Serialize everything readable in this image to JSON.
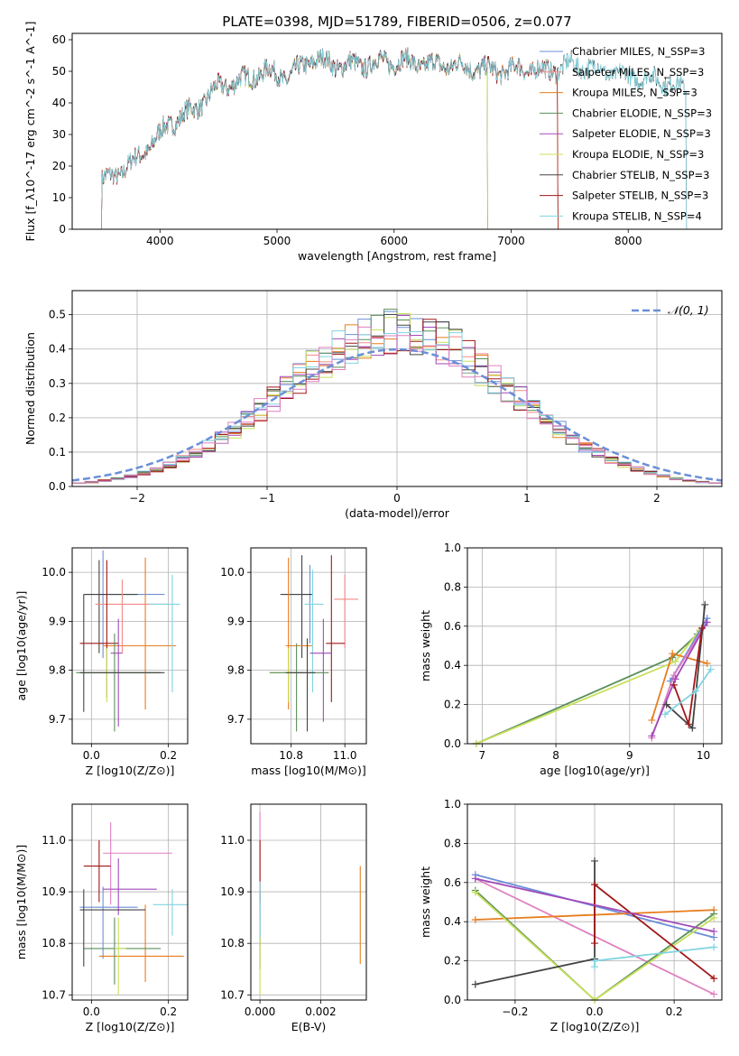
{
  "figure_title": "PLATE=0398, MJD=51789, FIBERID=0506, z=0.077",
  "colors": [
    "#6a8fd8",
    "#f08a86",
    "#e87d1e",
    "#5b8f5b",
    "#a14aba",
    "#c8e05a",
    "#444444",
    "#a01818",
    "#80d4e0",
    "#e07fc0"
  ],
  "chart_data": [
    {
      "id": "spectrum",
      "type": "line",
      "title": "PLATE=0398, MJD=51789, FIBERID=0506, z=0.077",
      "xlabel": "wavelength [Angstrom, rest frame]",
      "ylabel": "Flux [f_λ10^-17 erg cm^-2 s^-1 A^-1]",
      "xlim": [
        3250,
        8800
      ],
      "ylim": [
        0,
        62
      ],
      "xticks": [
        4000,
        5000,
        6000,
        7000,
        8000
      ],
      "yticks": [
        0,
        10,
        20,
        30,
        40,
        50,
        60
      ],
      "grid": false,
      "legend": "top-right",
      "continuum": [
        [
          3500,
          15
        ],
        [
          3650,
          18
        ],
        [
          3800,
          22
        ],
        [
          3950,
          28
        ],
        [
          4100,
          34
        ],
        [
          4300,
          38
        ],
        [
          4500,
          45
        ],
        [
          4700,
          47
        ],
        [
          4900,
          50
        ],
        [
          5100,
          48
        ],
        [
          5300,
          54
        ],
        [
          5500,
          52
        ],
        [
          5700,
          52
        ],
        [
          5900,
          53
        ],
        [
          6100,
          53
        ],
        [
          6300,
          52
        ],
        [
          6500,
          52
        ],
        [
          6700,
          51
        ],
        [
          6900,
          50
        ],
        [
          7100,
          51
        ],
        [
          7300,
          50
        ],
        [
          7500,
          52
        ],
        [
          7700,
          51
        ],
        [
          7900,
          49
        ],
        [
          8100,
          48
        ],
        [
          8300,
          47
        ],
        [
          8500,
          44
        ]
      ],
      "series": [
        {
          "name": "Chabrier MILES, N_SSP=3",
          "x_range": [
            3500,
            7400
          ]
        },
        {
          "name": "Salpeter MILES, N_SSP=3",
          "x_range": [
            3500,
            7400
          ]
        },
        {
          "name": "Kroupa MILES, N_SSP=3",
          "x_range": [
            3500,
            7400
          ]
        },
        {
          "name": "Chabrier ELODIE, N_SSP=3",
          "x_range": [
            3900,
            6800
          ]
        },
        {
          "name": "Salpeter ELODIE, N_SSP=3",
          "x_range": [
            3900,
            6800
          ]
        },
        {
          "name": "Kroupa ELODIE, N_SSP=3",
          "x_range": [
            3900,
            6800
          ]
        },
        {
          "name": "Chabrier STELIB, N_SSP=3",
          "x_range": [
            3500,
            8500
          ]
        },
        {
          "name": "Salpeter STELIB, N_SSP=3",
          "x_range": [
            3500,
            7400
          ]
        },
        {
          "name": "Kroupa STELIB, N_SSP=4",
          "x_range": [
            3500,
            8500
          ]
        }
      ]
    },
    {
      "id": "residuals",
      "type": "histogram",
      "xlabel": "(data-model)/error",
      "ylabel": "Normed distribution",
      "xlim": [
        -2.5,
        2.5
      ],
      "ylim": [
        0,
        0.57
      ],
      "xticks": [
        -2,
        -1,
        0,
        1,
        2
      ],
      "yticks": [
        0.0,
        0.1,
        0.2,
        0.3,
        0.4,
        0.5
      ],
      "grid": true,
      "legend": "top-right",
      "reference_curve": {
        "name": "𝒩(0, 1)",
        "mean": 0,
        "sigma": 1
      },
      "bin_width": 0.1,
      "bin_start": -2.5,
      "num_histograms": 10
    },
    {
      "id": "age-vs-z",
      "type": "errorbar",
      "xlabel": "Z [log10(Z/Z⊙)]",
      "ylabel": "age [log10(age/yr)]",
      "xlim": [
        -0.05,
        0.25
      ],
      "ylim": [
        9.65,
        10.05
      ],
      "xticks": [
        0.0,
        0.2
      ],
      "yticks": [
        9.7,
        9.8,
        9.9,
        10.0
      ],
      "grid": true,
      "points": [
        {
          "x": 0.03,
          "y": 9.955,
          "xerr": [
            0.05,
            0.16
          ],
          "yerr": [
            0.13,
            0.09
          ],
          "c": 0
        },
        {
          "x": 0.02,
          "y": 9.955,
          "xerr": [
            0.04,
            0.1
          ],
          "yerr": [
            0.12,
            0.07
          ],
          "c": 6
        },
        {
          "x": 0.14,
          "y": 9.85,
          "xerr": [
            0.11,
            0.08
          ],
          "yerr": [
            0.13,
            0.18
          ],
          "c": 2
        },
        {
          "x": 0.08,
          "y": 9.935,
          "xerr": [
            0.07,
            0.12
          ],
          "yerr": [
            0.1,
            0.05
          ],
          "c": 1
        },
        {
          "x": 0.21,
          "y": 9.935,
          "xerr": [
            0.06,
            0.02
          ],
          "yerr": [
            0.18,
            0.06
          ],
          "c": 8
        },
        {
          "x": 0.04,
          "y": 9.855,
          "xerr": [
            0.07,
            0.03
          ],
          "yerr": [
            0.11,
            0.17
          ],
          "c": 7
        },
        {
          "x": 0.07,
          "y": 9.835,
          "xerr": [
            0.02,
            0.01
          ],
          "yerr": [
            0.15,
            0.07
          ],
          "c": 4
        },
        {
          "x": 0.04,
          "y": 9.795,
          "xerr": [
            0.06,
            0.14
          ],
          "yerr": [
            0.06,
            0.05
          ],
          "c": 5
        },
        {
          "x": 0.06,
          "y": 9.795,
          "xerr": [
            0.1,
            0.12
          ],
          "yerr": [
            0.12,
            0.08
          ],
          "c": 3
        },
        {
          "x": -0.02,
          "y": 9.795,
          "xerr": [
            0.01,
            0.21
          ],
          "yerr": [
            0.08,
            0.16
          ],
          "c": 6
        }
      ]
    },
    {
      "id": "age-vs-mass",
      "type": "errorbar",
      "xlabel": "mass [log10(M/M⊙)]",
      "ylabel": "",
      "xlim": [
        10.65,
        11.08
      ],
      "ylim": [
        9.65,
        10.05
      ],
      "xticks": [
        10.8,
        11.0
      ],
      "yticks": [
        9.7,
        9.8,
        9.9,
        10.0
      ],
      "grid": true,
      "points": [
        {
          "x": 10.87,
          "y": 9.955,
          "xerr": [
            0.1,
            0.01
          ],
          "yerr": [
            0.1,
            0.06
          ],
          "c": 0
        },
        {
          "x": 10.84,
          "y": 9.955,
          "xerr": [
            0.08,
            0.04
          ],
          "yerr": [
            0.13,
            0.08
          ],
          "c": 6
        },
        {
          "x": 10.79,
          "y": 9.85,
          "xerr": [
            0.01,
            0.09
          ],
          "yerr": [
            0.13,
            0.18
          ],
          "c": 2
        },
        {
          "x": 11.0,
          "y": 9.945,
          "xerr": [
            0.04,
            0.05
          ],
          "yerr": [
            0.1,
            0.05
          ],
          "c": 1
        },
        {
          "x": 10.88,
          "y": 9.935,
          "xerr": [
            0.03,
            0.04
          ],
          "yerr": [
            0.18,
            0.07
          ],
          "c": 8
        },
        {
          "x": 10.95,
          "y": 9.855,
          "xerr": [
            0.02,
            0.05
          ],
          "yerr": [
            0.12,
            0.18
          ],
          "c": 7
        },
        {
          "x": 10.92,
          "y": 9.835,
          "xerr": [
            0.05,
            0.03
          ],
          "yerr": [
            0.14,
            0.07
          ],
          "c": 4
        },
        {
          "x": 10.79,
          "y": 9.795,
          "xerr": [
            0.07,
            0.06
          ],
          "yerr": [
            0.06,
            0.05
          ],
          "c": 5
        },
        {
          "x": 10.82,
          "y": 9.795,
          "xerr": [
            0.1,
            0.12
          ],
          "yerr": [
            0.12,
            0.06
          ],
          "c": 3
        },
        {
          "x": 10.86,
          "y": 9.795,
          "xerr": [
            0.08,
            0.03
          ],
          "yerr": [
            0.12,
            0.07
          ],
          "c": 6
        }
      ]
    },
    {
      "id": "weight-vs-age",
      "type": "line",
      "xlabel": "age [log10(age/yr)]",
      "ylabel": "mass weight",
      "xlim": [
        6.8,
        10.25
      ],
      "ylim": [
        0,
        1.0
      ],
      "xticks": [
        7,
        8,
        9,
        10
      ],
      "yticks": [
        0.0,
        0.2,
        0.4,
        0.6,
        0.8,
        1.0
      ],
      "grid": true,
      "series": [
        {
          "c": 3,
          "points": [
            [
              6.92,
              0.0
            ],
            [
              9.58,
              0.44
            ],
            [
              9.92,
              0.56
            ]
          ]
        },
        {
          "c": 5,
          "points": [
            [
              6.92,
              0.0
            ],
            [
              9.62,
              0.42
            ],
            [
              9.95,
              0.58
            ]
          ]
        },
        {
          "c": 2,
          "points": [
            [
              9.3,
              0.12
            ],
            [
              9.58,
              0.46
            ],
            [
              10.05,
              0.41
            ]
          ]
        },
        {
          "c": 0,
          "points": [
            [
              9.55,
              0.32
            ],
            [
              10.05,
              0.64
            ]
          ]
        },
        {
          "c": 9,
          "points": [
            [
              9.3,
              0.03
            ],
            [
              9.6,
              0.35
            ],
            [
              10.05,
              0.62
            ]
          ]
        },
        {
          "c": 4,
          "points": [
            [
              9.3,
              0.04
            ],
            [
              9.62,
              0.33
            ],
            [
              10.05,
              0.62
            ]
          ]
        },
        {
          "c": 6,
          "points": [
            [
              9.5,
              0.2
            ],
            [
              9.85,
              0.08
            ],
            [
              10.02,
              0.71
            ]
          ]
        },
        {
          "c": 7,
          "points": [
            [
              9.6,
              0.3
            ],
            [
              9.8,
              0.1
            ],
            [
              9.98,
              0.59
            ]
          ]
        },
        {
          "c": 8,
          "points": [
            [
              9.48,
              0.15
            ],
            [
              9.9,
              0.27
            ],
            [
              10.1,
              0.38
            ]
          ]
        }
      ]
    },
    {
      "id": "mass-vs-z",
      "type": "errorbar",
      "xlabel": "Z [log10(Z/Z⊙)]",
      "ylabel": "mass [log10(M/M⊙)]",
      "xlim": [
        -0.05,
        0.25
      ],
      "ylim": [
        10.69,
        11.07
      ],
      "xticks": [
        0.0,
        0.2
      ],
      "yticks": [
        10.7,
        10.8,
        10.9,
        11.0
      ],
      "grid": true,
      "points": [
        {
          "x": 0.03,
          "y": 10.87,
          "xerr": [
            0.06,
            0.09
          ],
          "yerr": [
            0.1,
            0.04
          ],
          "c": 0
        },
        {
          "x": 0.05,
          "y": 10.975,
          "xerr": [
            0.02,
            0.16
          ],
          "yerr": [
            0.1,
            0.06
          ],
          "c": 9
        },
        {
          "x": 0.14,
          "y": 10.775,
          "xerr": [
            0.12,
            0.1
          ],
          "yerr": [
            0.05,
            0.1
          ],
          "c": 2
        },
        {
          "x": 0.07,
          "y": 10.905,
          "xerr": [
            0.04,
            0.1
          ],
          "yerr": [
            0.05,
            0.06
          ],
          "c": 4
        },
        {
          "x": 0.21,
          "y": 10.875,
          "xerr": [
            0.05,
            0.04
          ],
          "yerr": [
            0.06,
            0.03
          ],
          "c": 8
        },
        {
          "x": 0.02,
          "y": 10.95,
          "xerr": [
            0.04,
            0.03
          ],
          "yerr": [
            0.07,
            0.05
          ],
          "c": 7
        },
        {
          "x": 0.06,
          "y": 10.79,
          "xerr": [
            0.08,
            0.12
          ],
          "yerr": [
            0.07,
            0.06
          ],
          "c": 3
        },
        {
          "x": 0.07,
          "y": 10.79,
          "xerr": [
            0.01,
            0.02
          ],
          "yerr": [
            0.09,
            0.06
          ],
          "c": 5
        },
        {
          "x": -0.02,
          "y": 10.865,
          "xerr": [
            0.01,
            0.16
          ],
          "yerr": [
            0.11,
            0.04
          ],
          "c": 6
        }
      ]
    },
    {
      "id": "mass-vs-ebv",
      "type": "errorbar",
      "xlabel": "E(B-V)",
      "ylabel": "",
      "xlim": [
        -0.0003,
        0.0035
      ],
      "ylim": [
        10.69,
        11.07
      ],
      "xticks": [
        0.0,
        0.002
      ],
      "xtick_labels": [
        "0.000",
        "0.002"
      ],
      "yticks": [
        10.7,
        10.8,
        10.9,
        11.0
      ],
      "grid": true,
      "points": [
        {
          "x": 0.0,
          "y": 10.975,
          "xerr": [
            0,
            0
          ],
          "yerr": [
            0.1,
            0.08
          ],
          "c": 9
        },
        {
          "x": 0.0,
          "y": 10.95,
          "xerr": [
            0,
            0
          ],
          "yerr": [
            0.07,
            0.05
          ],
          "c": 7
        },
        {
          "x": 0.0,
          "y": 10.85,
          "xerr": [
            0,
            0
          ],
          "yerr": [
            0.1,
            0.05
          ],
          "c": 6
        },
        {
          "x": 0.0,
          "y": 10.8,
          "xerr": [
            0,
            0
          ],
          "yerr": [
            0.1,
            0.05
          ],
          "c": 5
        },
        {
          "x": 0.0,
          "y": 10.87,
          "xerr": [
            0,
            0
          ],
          "yerr": [
            0.06,
            0.05
          ],
          "c": 8
        },
        {
          "x": 0.0033,
          "y": 10.86,
          "xerr": [
            0,
            0
          ],
          "yerr": [
            0.1,
            0.09
          ],
          "c": 2
        }
      ]
    },
    {
      "id": "weight-vs-z",
      "type": "line",
      "xlabel": "Z [log10(Z/Z⊙)]",
      "ylabel": "mass weight",
      "xlim": [
        -0.32,
        0.32
      ],
      "ylim": [
        0,
        1.0
      ],
      "xticks": [
        -0.2,
        0.0,
        0.2
      ],
      "yticks": [
        0.0,
        0.2,
        0.4,
        0.6,
        0.8,
        1.0
      ],
      "grid": true,
      "series": [
        {
          "c": 0,
          "points": [
            [
              -0.3,
              0.64
            ],
            [
              0.3,
              0.32
            ]
          ]
        },
        {
          "c": 9,
          "points": [
            [
              -0.3,
              0.62
            ],
            [
              0.3,
              0.03
            ]
          ]
        },
        {
          "c": 2,
          "points": [
            [
              -0.3,
              0.41
            ],
            [
              0.3,
              0.46
            ]
          ]
        },
        {
          "c": 3,
          "points": [
            [
              -0.3,
              0.56
            ],
            [
              0.0,
              0.0
            ],
            [
              0.3,
              0.44
            ]
          ]
        },
        {
          "c": 5,
          "points": [
            [
              -0.3,
              0.55
            ],
            [
              0.0,
              0.0
            ],
            [
              0.3,
              0.42
            ]
          ]
        },
        {
          "c": 6,
          "points": [
            [
              -0.3,
              0.08
            ],
            [
              0.0,
              0.21
            ],
            [
              0.0,
              0.71
            ]
          ]
        },
        {
          "c": 7,
          "points": [
            [
              0.0,
              0.29
            ],
            [
              0.0,
              0.59
            ],
            [
              0.3,
              0.11
            ]
          ]
        },
        {
          "c": 8,
          "points": [
            [
              0.0,
              0.17
            ],
            [
              0.0,
              0.2
            ],
            [
              0.3,
              0.27
            ]
          ]
        },
        {
          "c": 4,
          "points": [
            [
              -0.3,
              0.62
            ],
            [
              0.3,
              0.35
            ]
          ]
        }
      ]
    }
  ]
}
